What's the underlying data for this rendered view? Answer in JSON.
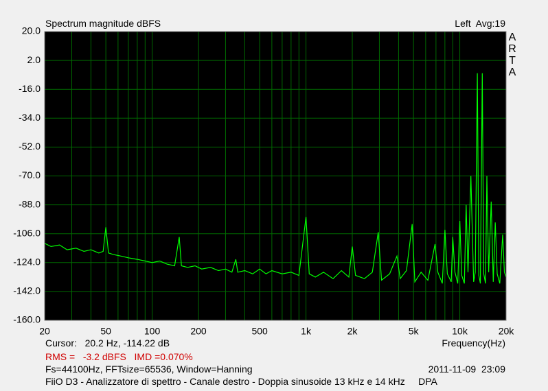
{
  "chart_data": {
    "type": "line",
    "title": "Spectrum magnitude dBFS",
    "xlabel": "Frequency(Hz)",
    "channel": "Left  Avg:19",
    "brand": "ARTA",
    "cursor": "Cursor:   20.2 Hz, -114.22 dB",
    "rms": "RMS =   -3.2 dBFS   IMD =0.070%",
    "settings": "Fs=44100Hz, FFTsize=65536, Window=Hanning",
    "timestamp": "2011-11-09  23:09",
    "caption": "FiiO D3 - Analizzatore di spettro - Canale destro - Doppia sinusoide 13 kHz e 14 kHz     DPA",
    "log_x": true,
    "grid": true,
    "color": "#00ff00",
    "xlim": [
      20,
      20000
    ],
    "xticks": [
      20,
      50,
      100,
      200,
      500,
      {
        "value": 1000,
        "label": "1k"
      },
      {
        "value": 2000,
        "label": "2k"
      },
      {
        "value": 5000,
        "label": "5k"
      },
      {
        "value": 10000,
        "label": "10k"
      },
      {
        "value": 20000,
        "label": "20k"
      }
    ],
    "xminorticks": [
      30,
      40,
      60,
      70,
      80,
      90,
      300,
      400,
      600,
      700,
      800,
      900,
      3000,
      4000,
      6000,
      7000,
      8000,
      9000
    ],
    "ylim": [
      -160,
      20
    ],
    "yticks": [
      {
        "value": 20,
        "label": "20.0"
      },
      {
        "value": 2,
        "label": "2.0"
      },
      {
        "value": -16,
        "label": "-16.0"
      },
      {
        "value": -34,
        "label": "-34.0"
      },
      {
        "value": -52,
        "label": "-52.0"
      },
      {
        "value": -70,
        "label": "-70.0"
      },
      {
        "value": -88,
        "label": "-88.0"
      },
      {
        "value": -106,
        "label": "-106.0"
      },
      {
        "value": -124,
        "label": "-124.0"
      },
      {
        "value": -142,
        "label": "-142.0"
      },
      {
        "value": -160,
        "label": "-160.0"
      }
    ],
    "x": [
      20,
      22,
      25,
      28,
      32,
      36,
      40,
      45,
      48,
      50,
      52,
      56,
      63,
      70,
      80,
      90,
      100,
      112,
      125,
      140,
      150,
      155,
      170,
      190,
      210,
      240,
      270,
      300,
      330,
      350,
      360,
      400,
      450,
      500,
      550,
      600,
      700,
      800,
      900,
      1000,
      1050,
      1150,
      1300,
      1500,
      1700,
      1900,
      2000,
      2100,
      2400,
      2700,
      2950,
      3100,
      3500,
      3900,
      4100,
      4500,
      4900,
      5100,
      5600,
      6200,
      6900,
      7200,
      7700,
      8000,
      8300,
      8800,
      9000,
      9300,
      9700,
      10000,
      10300,
      10700,
      11000,
      11300,
      11800,
      12300,
      12600,
      13000,
      13300,
      13600,
      14000,
      14300,
      14700,
      15000,
      15400,
      16000,
      16500,
      17000,
      17500,
      18200,
      19000,
      19500,
      20000
    ],
    "values": [
      -112,
      -114,
      -113,
      -116,
      -115,
      -117,
      -116,
      -118,
      -117,
      -102,
      -118,
      -119,
      -120,
      -121,
      -122,
      -123,
      -124,
      -123,
      -125,
      -126,
      -108,
      -126,
      -127,
      -126,
      -128,
      -127,
      -129,
      -128,
      -130,
      -122,
      -130,
      -129,
      -131,
      -128,
      -131,
      -129,
      -131,
      -130,
      -132,
      -95.5,
      -131,
      -133,
      -130,
      -134,
      -129,
      -133,
      -114,
      -132,
      -134,
      -130,
      -105,
      -135,
      -131,
      -120,
      -134,
      -129,
      -100,
      -136,
      -130,
      -135,
      -112.5,
      -130,
      -137,
      -103.5,
      -131,
      -136,
      -108,
      -130,
      -137,
      -98,
      -132,
      -137,
      -88,
      -130,
      -70,
      -136,
      -130,
      -6,
      -132,
      -137,
      -6,
      -131,
      -137,
      -70,
      -130,
      -86,
      -136,
      -99,
      -131,
      -137,
      -106.5,
      -130,
      -133
    ]
  }
}
